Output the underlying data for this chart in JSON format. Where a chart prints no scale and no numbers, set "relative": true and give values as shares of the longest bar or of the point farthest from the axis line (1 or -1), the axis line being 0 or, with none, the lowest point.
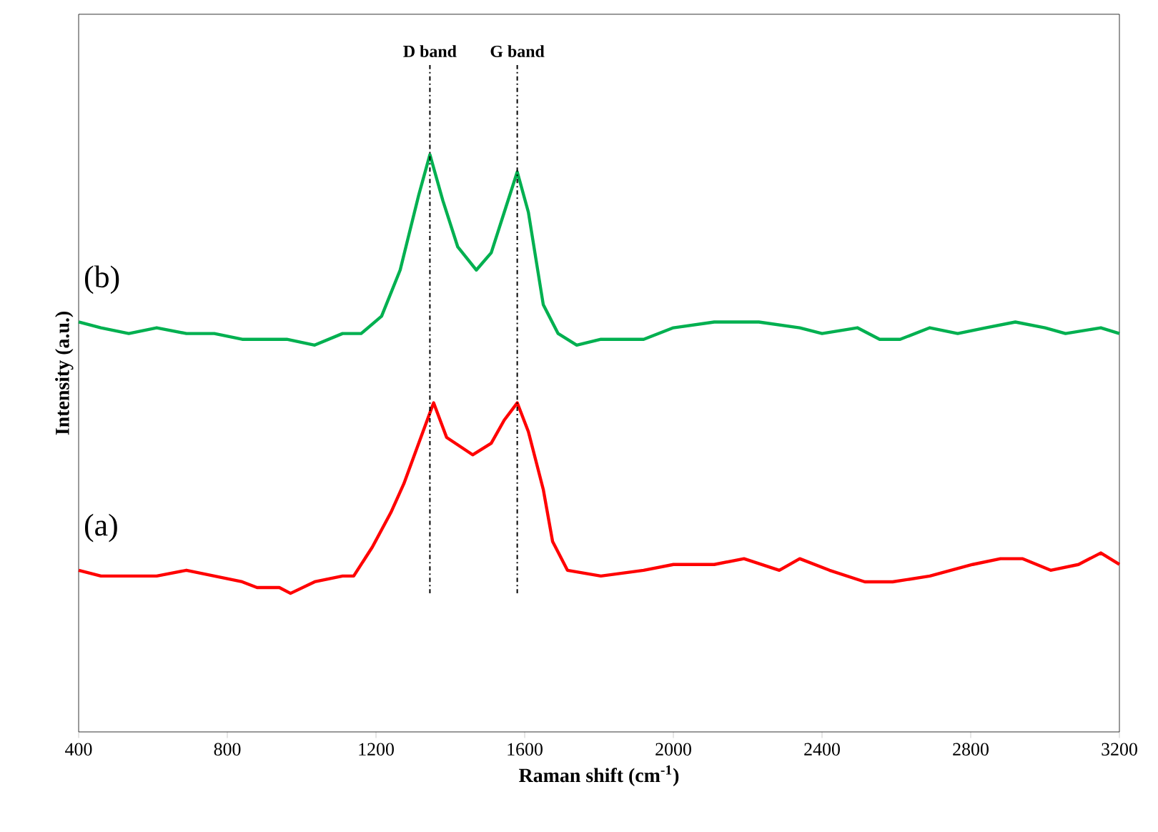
{
  "chart_data": {
    "type": "line",
    "relative": true,
    "xlabel": "Raman shift (cm$^{-1}$)",
    "ylabel": "Intensity (a.u.)",
    "xlim": [
      400,
      3200
    ],
    "xticks": [
      400,
      800,
      1200,
      1600,
      2000,
      2400,
      2800,
      3200
    ],
    "tick_labels": "x",
    "grid": false,
    "marker": "none",
    "line_style": "solid",
    "series": [
      {
        "color": "#ff0000",
        "x": [
          400,
          460,
          535,
          610,
          690,
          765,
          840,
          880,
          940,
          970,
          1035,
          1110,
          1140,
          1190,
          1240,
          1275,
          1315,
          1355,
          1390,
          1460,
          1510,
          1545,
          1580,
          1610,
          1650,
          1675,
          1715,
          1805,
          1920,
          2000,
          2110,
          2190,
          2285,
          2340,
          2420,
          2515,
          2590,
          2690,
          2805,
          2880,
          2940,
          3015,
          3090,
          3150,
          3200
        ],
        "values": [
          0.28,
          0.27,
          0.27,
          0.27,
          0.28,
          0.27,
          0.26,
          0.25,
          0.25,
          0.24,
          0.26,
          0.27,
          0.27,
          0.32,
          0.38,
          0.43,
          0.5,
          0.57,
          0.51,
          0.48,
          0.5,
          0.54,
          0.57,
          0.52,
          0.42,
          0.33,
          0.28,
          0.27,
          0.28,
          0.29,
          0.29,
          0.3,
          0.28,
          0.3,
          0.28,
          0.26,
          0.26,
          0.27,
          0.29,
          0.3,
          0.3,
          0.28,
          0.29,
          0.31,
          0.29
        ]
      },
      {
        "color": "#00b050",
        "x": [
          400,
          460,
          535,
          610,
          690,
          765,
          840,
          960,
          1035,
          1110,
          1160,
          1215,
          1265,
          1315,
          1345,
          1380,
          1420,
          1470,
          1510,
          1545,
          1580,
          1610,
          1650,
          1690,
          1740,
          1805,
          1920,
          2000,
          2110,
          2230,
          2340,
          2400,
          2495,
          2555,
          2610,
          2690,
          2765,
          2840,
          2920,
          3000,
          3055,
          3150,
          3200
        ],
        "values": [
          0.71,
          0.7,
          0.69,
          0.7,
          0.69,
          0.69,
          0.68,
          0.68,
          0.67,
          0.69,
          0.69,
          0.72,
          0.8,
          0.93,
          1.0,
          0.92,
          0.84,
          0.8,
          0.83,
          0.9,
          0.97,
          0.9,
          0.74,
          0.69,
          0.67,
          0.68,
          0.68,
          0.7,
          0.71,
          0.71,
          0.7,
          0.69,
          0.7,
          0.68,
          0.68,
          0.7,
          0.69,
          0.7,
          0.71,
          0.7,
          0.69,
          0.7,
          0.69
        ]
      }
    ],
    "ref_lines": [
      {
        "axis": "x",
        "value": 1345,
        "label": "D band",
        "color": "#000000",
        "line_style": "dashdotted"
      },
      {
        "axis": "x",
        "value": 1580,
        "label": "G band",
        "color": "#000000",
        "line_style": "dashdotted"
      }
    ],
    "annotations": [
      "(a)",
      "(b)"
    ]
  }
}
